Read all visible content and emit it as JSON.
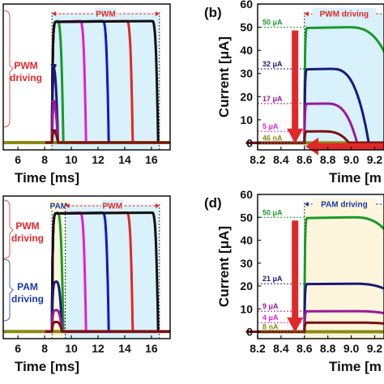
{
  "colors": {
    "green": "#1a9a2a",
    "magenta": "#e020d0",
    "blue": "#1515c8",
    "red": "#e02828",
    "black": "#101010",
    "navy": "#1a1a7a",
    "purple": "#9a1a9a",
    "darkred": "#7a1010",
    "olive": "#8a8a14",
    "pwm_bg": "#d8f1fa",
    "pam_bg": "#fdf6dc",
    "pwm_text": "#e02828",
    "pam_text": "#1a3aa0"
  },
  "chart_data": [
    {
      "panel": "a",
      "type": "line",
      "xlabel": "Time [ms]",
      "x_ticks": [
        "6",
        "8",
        "10",
        "12",
        "14",
        "16"
      ],
      "xlim": [
        4.9,
        17.4
      ],
      "ylim": [
        -3,
        57
      ],
      "side_labels": [
        "PWM",
        "driving"
      ],
      "regions": [
        {
          "label": "PWM",
          "from": 8.55,
          "to": 16.6,
          "style": "pwm"
        }
      ],
      "series": [
        {
          "color": "green",
          "on": 8.55,
          "off": 9.4,
          "level": 50
        },
        {
          "color": "magenta",
          "on": 8.55,
          "off": 11.1,
          "level": 50
        },
        {
          "color": "blue",
          "on": 8.55,
          "off": 12.8,
          "level": 50
        },
        {
          "color": "red",
          "on": 8.55,
          "off": 14.6,
          "level": 50
        },
        {
          "color": "black",
          "on": 8.55,
          "off": 16.5,
          "level": 50
        },
        {
          "color": "navy",
          "on": 8.55,
          "off": 9.0,
          "level": 32
        },
        {
          "color": "purple",
          "on": 8.55,
          "off": 9.0,
          "level": 17
        },
        {
          "color": "magenta",
          "on": 8.55,
          "off": 9.0,
          "level": 5
        },
        {
          "color": "darkred",
          "on": 8.55,
          "off": 9.0,
          "level": 5
        }
      ]
    },
    {
      "panel": "b",
      "type": "line",
      "panel_label": "(b)",
      "xlabel": "Time [m",
      "ylabel": "Current [μA]",
      "x_ticks": [
        "8.2",
        "8.4",
        "8.6",
        "8.8",
        "9.0",
        "9.2"
      ],
      "y_ticks": [
        "0",
        "10",
        "20",
        "30",
        "40",
        "50",
        "60"
      ],
      "xlim": [
        8.2,
        9.28
      ],
      "ylim": [
        -3,
        60
      ],
      "regions": [
        {
          "label": "PWM driving",
          "from": 8.6,
          "to": 9.28,
          "style": "pwm"
        }
      ],
      "annotations": [
        {
          "text": "50 μA",
          "y": 50,
          "color": "green"
        },
        {
          "text": "32 μA",
          "y": 32,
          "color": "navy"
        },
        {
          "text": "17 μA",
          "y": 17,
          "color": "purple"
        },
        {
          "text": "5 μA",
          "y": 5,
          "color": "magenta"
        },
        {
          "text": "46 nA",
          "y": 0.05,
          "color": "olive"
        }
      ],
      "series": [
        {
          "color": "green",
          "on": 8.6,
          "off": 9.5,
          "level": 50
        },
        {
          "color": "navy",
          "on": 8.6,
          "off": 9.15,
          "level": 32
        },
        {
          "color": "purple",
          "on": 8.6,
          "off": 9.05,
          "level": 17
        },
        {
          "color": "darkred",
          "on": 8.6,
          "off": 8.98,
          "level": 5
        }
      ]
    },
    {
      "panel": "c",
      "type": "line",
      "xlabel": "Time [ms]",
      "x_ticks": [
        "6",
        "8",
        "10",
        "12",
        "14",
        "16"
      ],
      "xlim": [
        4.9,
        17.4
      ],
      "ylim": [
        -3,
        57
      ],
      "side_labels_top": [
        "PWM",
        "driving"
      ],
      "side_labels_bottom": [
        "PAM",
        "driving"
      ],
      "regions": [
        {
          "label": "PAM",
          "from": 8.55,
          "to": 9.55,
          "style": "pam"
        },
        {
          "label": "PWM",
          "from": 9.55,
          "to": 16.6,
          "style": "pwm"
        }
      ],
      "series": [
        {
          "color": "green",
          "on": 8.55,
          "off": 9.4,
          "level": 50
        },
        {
          "color": "magenta",
          "on": 8.55,
          "off": 11.1,
          "level": 50
        },
        {
          "color": "blue",
          "on": 8.55,
          "off": 12.8,
          "level": 50
        },
        {
          "color": "red",
          "on": 8.55,
          "off": 14.6,
          "level": 50
        },
        {
          "color": "black",
          "on": 8.55,
          "off": 16.5,
          "level": 50
        },
        {
          "color": "navy",
          "on": 8.55,
          "off": 9.3,
          "level": 21
        },
        {
          "color": "purple",
          "on": 8.55,
          "off": 9.3,
          "level": 9
        },
        {
          "color": "magenta",
          "on": 8.55,
          "off": 9.3,
          "level": 4
        },
        {
          "color": "darkred",
          "on": 8.55,
          "off": 9.3,
          "level": 4
        }
      ]
    },
    {
      "panel": "d",
      "type": "line",
      "panel_label": "(d)",
      "xlabel": "Time [m",
      "ylabel": "Current [μA]",
      "x_ticks": [
        "8.2",
        "8.4",
        "8.6",
        "8.8",
        "9.0",
        "9.2"
      ],
      "y_ticks": [
        "0",
        "10",
        "20",
        "30",
        "40",
        "50",
        "60"
      ],
      "xlim": [
        8.2,
        9.28
      ],
      "ylim": [
        -3,
        60
      ],
      "regions": [
        {
          "label": "PAM driving",
          "from": 8.6,
          "to": 9.28,
          "style": "pam"
        }
      ],
      "annotations": [
        {
          "text": "50 μA",
          "y": 50,
          "color": "green"
        },
        {
          "text": "21 μA",
          "y": 21,
          "color": "navy"
        },
        {
          "text": "9 μA",
          "y": 9,
          "color": "purple"
        },
        {
          "text": "4 μA",
          "y": 4,
          "color": "magenta"
        },
        {
          "text": "8 nA",
          "y": 0.05,
          "color": "olive"
        }
      ],
      "series": [
        {
          "color": "green",
          "on": 8.6,
          "off": 9.6,
          "level": 50
        },
        {
          "color": "navy",
          "on": 8.6,
          "off": 9.6,
          "level": 21
        },
        {
          "color": "purple",
          "on": 8.6,
          "off": 9.6,
          "level": 9
        },
        {
          "color": "darkred",
          "on": 8.6,
          "off": 9.6,
          "level": 4
        }
      ]
    }
  ]
}
